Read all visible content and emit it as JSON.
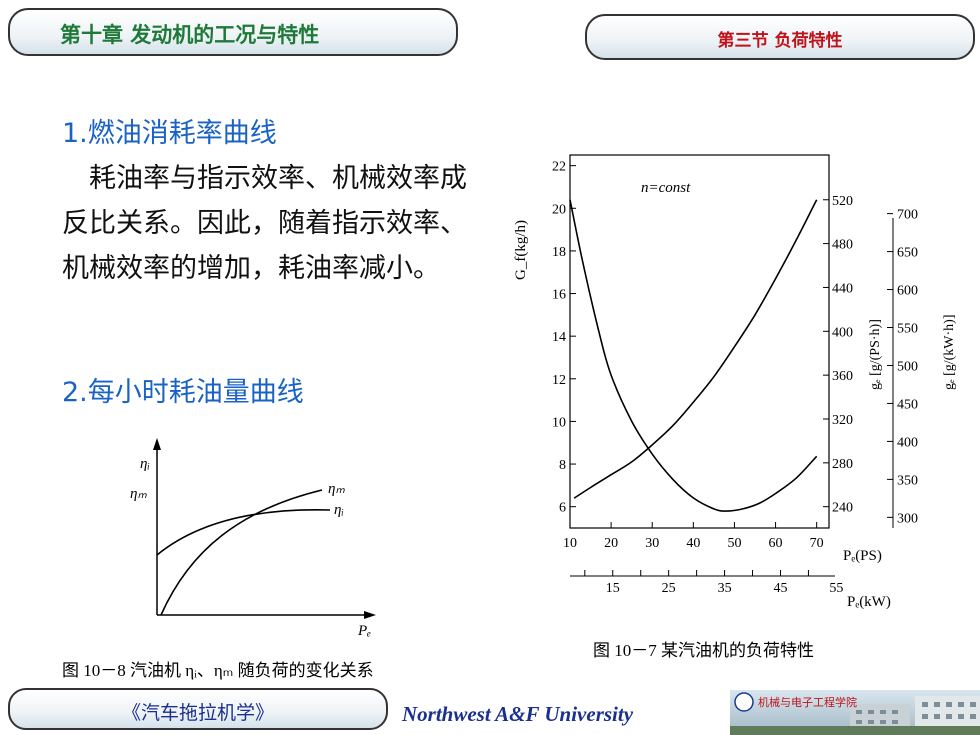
{
  "header": {
    "chapter_title": "第十章 发动机的工况与特性",
    "section_title": "第三节 负荷特性"
  },
  "main": {
    "heading1": "1.燃油消耗率曲线",
    "paragraph": "　耗油率与指示效率、机械效率成反比关系。因此，随着指示效率、机械效率的增加，耗油率减小。",
    "heading2": "2.每小时耗油量曲线"
  },
  "figure_left": {
    "caption": "图 10－8 汽油机 ηᵢ、ηₘ 随负荷的变化关系",
    "y_label_eta_i": "ηᵢ",
    "y_label_eta_m": "ηₘ",
    "curve_label_eta_m": "ηₘ",
    "curve_label_eta_i": "ηᵢ",
    "x_label": "Pₑ"
  },
  "chart_data": {
    "type": "line",
    "annotation": "n=const",
    "caption": "图 10－7 某汽油机的负荷特性",
    "x_label_ps": "Pₑ(PS)",
    "x_label_kw": "Pₑ(kW)",
    "x_ticks_ps": [
      "10",
      "20",
      "30",
      "40",
      "50",
      "60",
      "70"
    ],
    "x_ticks_kw": [
      "15",
      "25",
      "35",
      "45",
      "55"
    ],
    "y_left_label": "G_f(kg/h)",
    "y_left_ticks": [
      "6",
      "8",
      "10",
      "12",
      "14",
      "16",
      "18",
      "20",
      "22"
    ],
    "y_mid_label": "gₑ [g/(PS·h)]",
    "y_mid_ticks": [
      "240",
      "280",
      "320",
      "360",
      "400",
      "440",
      "480",
      "520"
    ],
    "y_right_label": "gₑ [g/(kW·h)]",
    "y_right_ticks": [
      "300",
      "350",
      "400",
      "450",
      "500",
      "550",
      "600",
      "650",
      "700"
    ],
    "xlim": [
      10,
      73
    ],
    "ylim_left": [
      5,
      22.5
    ],
    "series": [
      {
        "axis": "Gf",
        "x": [
          11,
          15,
          20,
          25,
          30,
          35,
          40,
          45,
          50,
          55,
          60,
          65,
          70
        ],
        "y": [
          6.4,
          6.9,
          7.5,
          8.1,
          8.9,
          9.8,
          10.9,
          12.1,
          13.5,
          15.0,
          16.7,
          18.5,
          20.4
        ]
      },
      {
        "axis": "ge_PS",
        "x": [
          10,
          13,
          17,
          20,
          25,
          30,
          35,
          40,
          45,
          48,
          52,
          56,
          60,
          65,
          70
        ],
        "y": [
          520,
          465,
          400,
          360,
          318,
          288,
          265,
          248,
          238,
          236,
          238,
          243,
          252,
          266,
          286
        ]
      }
    ]
  },
  "footer": {
    "book_title": "《汽车拖拉机学》",
    "university": "Northwest A&F University",
    "college_logo_text": "机械与电子工程学院"
  }
}
